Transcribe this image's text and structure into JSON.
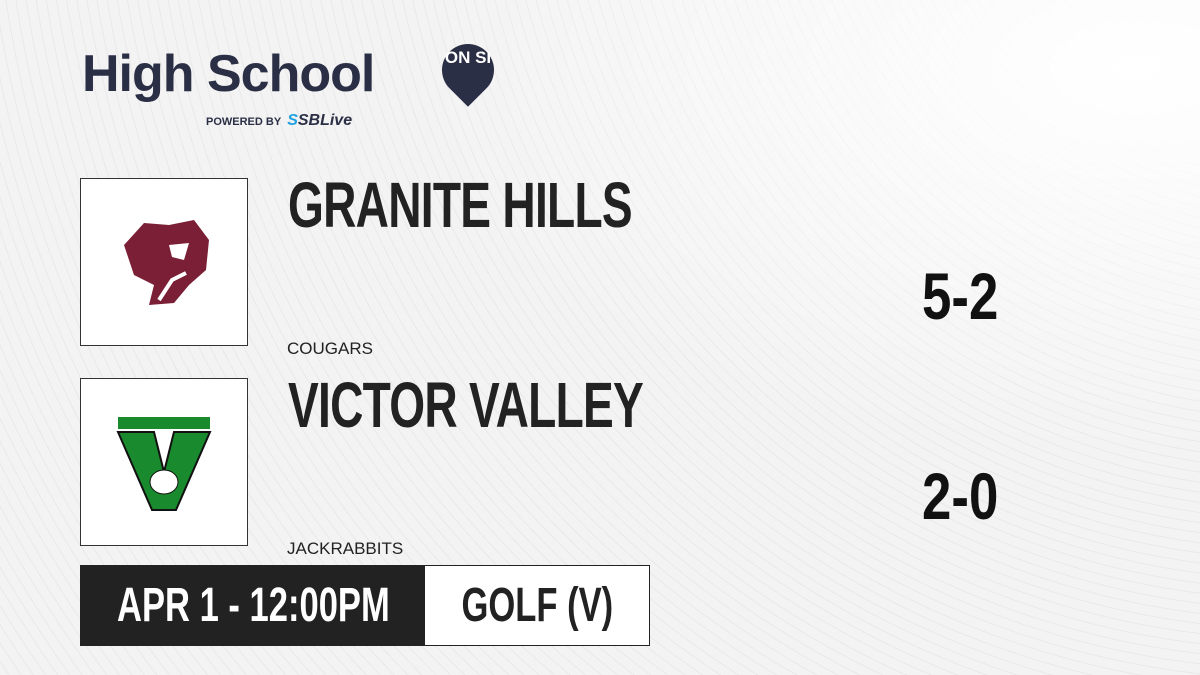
{
  "brand": {
    "title": "High School",
    "badge": "ON SI",
    "powered_by": "POWERED BY",
    "partner_prefix": "S",
    "partner": "SBLive"
  },
  "teams": [
    {
      "name": "GRANITE HILLS",
      "mascot": "COUGARS",
      "score": "5-2",
      "logo": "cougar-logo",
      "color": "#7a1f35"
    },
    {
      "name": "VICTOR VALLEY",
      "mascot": "JACKRABBITS",
      "score": "2-0",
      "logo": "jackrabbit-v-logo",
      "color": "#1a8a2e"
    }
  ],
  "game": {
    "datetime": "APR 1 - 12:00PM",
    "sport": "GOLF (V)"
  }
}
